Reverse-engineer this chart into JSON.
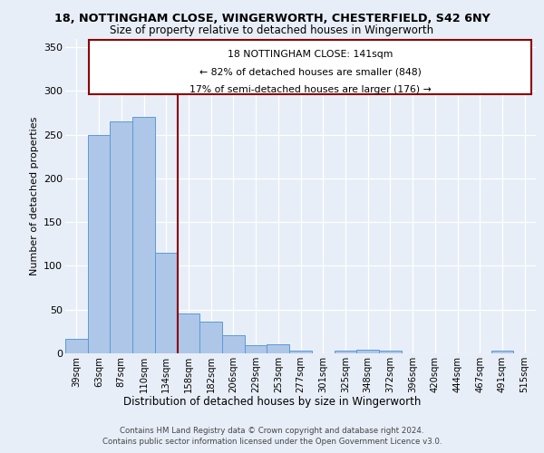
{
  "title1": "18, NOTTINGHAM CLOSE, WINGERWORTH, CHESTERFIELD, S42 6NY",
  "title2": "Size of property relative to detached houses in Wingerworth",
  "xlabel": "Distribution of detached houses by size in Wingerworth",
  "ylabel": "Number of detached properties",
  "categories": [
    "39sqm",
    "63sqm",
    "87sqm",
    "110sqm",
    "134sqm",
    "158sqm",
    "182sqm",
    "206sqm",
    "229sqm",
    "253sqm",
    "277sqm",
    "301sqm",
    "325sqm",
    "348sqm",
    "372sqm",
    "396sqm",
    "420sqm",
    "444sqm",
    "467sqm",
    "491sqm",
    "515sqm"
  ],
  "values": [
    17,
    250,
    265,
    270,
    115,
    46,
    36,
    21,
    9,
    10,
    3,
    0,
    3,
    4,
    3,
    0,
    0,
    0,
    0,
    3,
    0
  ],
  "bar_color": "#aec6e8",
  "bar_edge_color": "#5b9bd5",
  "annotation_line1": "18 NOTTINGHAM CLOSE: 141sqm",
  "annotation_line2": "← 82% of detached houses are smaller (848)",
  "annotation_line3": "17% of semi-detached houses are larger (176) →",
  "ylim": [
    0,
    360
  ],
  "yticks": [
    0,
    50,
    100,
    150,
    200,
    250,
    300,
    350
  ],
  "footer1": "Contains HM Land Registry data © Crown copyright and database right 2024.",
  "footer2": "Contains public sector information licensed under the Open Government Licence v3.0.",
  "bg_color": "#e8eef8",
  "plot_bg_color": "#e8eef8"
}
